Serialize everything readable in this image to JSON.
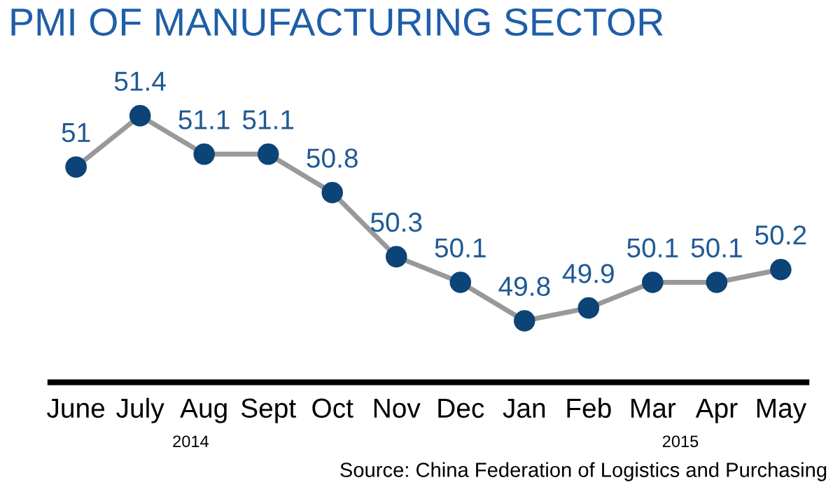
{
  "chart_data": {
    "type": "line",
    "title": "PMI OF MANUFACTURING SECTOR",
    "categories": [
      "June",
      "July",
      "Aug",
      "Sept",
      "Oct",
      "Nov",
      "Dec",
      "Jan",
      "Feb",
      "Mar",
      "Apr",
      "May"
    ],
    "series": [
      {
        "color": "#999999",
        "values": [
          51,
          51.4,
          51.1,
          51.1,
          50.8,
          50.3,
          50.1,
          49.8,
          49.9,
          50.1,
          50.1,
          50.2
        ]
      }
    ],
    "marker": "circle",
    "data_labels": true,
    "grid": false,
    "legend": false,
    "annotations": [
      "2014",
      "2015",
      "Source: China Federation of Logistics and Purchasing"
    ]
  }
}
